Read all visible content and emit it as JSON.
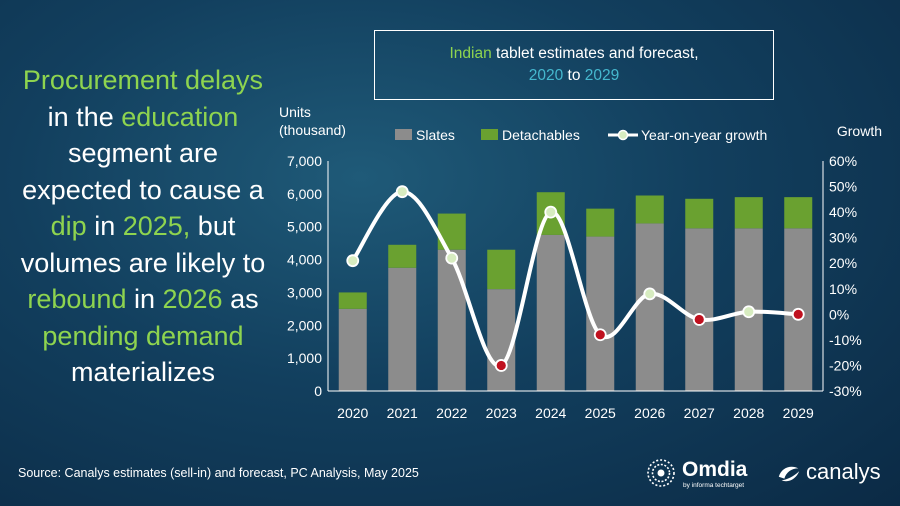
{
  "headline": {
    "segments": [
      {
        "text": "Procurement",
        "hl": true
      },
      {
        "text": " delays",
        "hl": true
      },
      {
        "text": " in the ",
        "hl": false
      },
      {
        "text": "education",
        "hl": true
      },
      {
        "text": " segment are expected to cause a ",
        "hl": false
      },
      {
        "text": "dip",
        "hl": true
      },
      {
        "text": " in ",
        "hl": false
      },
      {
        "text": "2025,",
        "hl": true
      },
      {
        "text": " but volumes are likely to ",
        "hl": false
      },
      {
        "text": "rebound",
        "hl": true
      },
      {
        "text": " in ",
        "hl": false
      },
      {
        "text": "2026",
        "hl": true
      },
      {
        "text": " as ",
        "hl": false
      },
      {
        "text": "pending demand",
        "hl": true
      },
      {
        "text": " materializes",
        "hl": false
      }
    ]
  },
  "title": {
    "part1_green": "Indian",
    "part1_rest": " tablet estimates and forecast,",
    "year_start": "2020",
    "to": " to ",
    "year_end": "2029"
  },
  "source": "Source: Canalys estimates (sell-in) and forecast, PC Analysis, May 2025",
  "logos": {
    "omdia": "Omdia",
    "omdia_tagline": "by informa techtarget",
    "canalys": "canalys"
  },
  "colors": {
    "slates": "#8c8c8c",
    "detachables": "#6aa130",
    "growth_line": "#ffffff",
    "point_positive": "#d7ecc0",
    "point_negative": "#c0111f",
    "highlight_text": "#8ed44f",
    "title_teal": "#45b8cf"
  },
  "chart_data": {
    "type": "bar",
    "stacked": true,
    "categories": [
      "2020",
      "2021",
      "2022",
      "2023",
      "2024",
      "2025",
      "2026",
      "2027",
      "2028",
      "2029"
    ],
    "series": [
      {
        "name": "Slates",
        "axis": "left",
        "values": [
          2500,
          3750,
          4300,
          3100,
          4750,
          4700,
          5100,
          4950,
          4950,
          4950
        ]
      },
      {
        "name": "Detachables",
        "axis": "left",
        "values": [
          500,
          700,
          1100,
          1200,
          1300,
          850,
          850,
          900,
          950,
          950
        ]
      },
      {
        "name": "Year-on-year growth",
        "type": "line",
        "axis": "right",
        "values": [
          21,
          48,
          22,
          -20,
          40,
          -8,
          8,
          -2,
          1,
          0
        ]
      }
    ],
    "ylabel_left": "Units\n(thousand)",
    "ylabel_right": "Growth",
    "ylim_left": [
      0,
      7000
    ],
    "yticks_left": [
      "0",
      "1,000",
      "2,000",
      "3,000",
      "4,000",
      "5,000",
      "6,000",
      "7,000"
    ],
    "ylim_right": [
      -30,
      60
    ],
    "yticks_right": [
      "-30%",
      "-20%",
      "-10%",
      "0%",
      "10%",
      "20%",
      "30%",
      "40%",
      "50%",
      "60%"
    ],
    "legend": [
      "Slates",
      "Detachables",
      "Year-on-year growth"
    ],
    "legend_position": "top",
    "grid": false
  }
}
